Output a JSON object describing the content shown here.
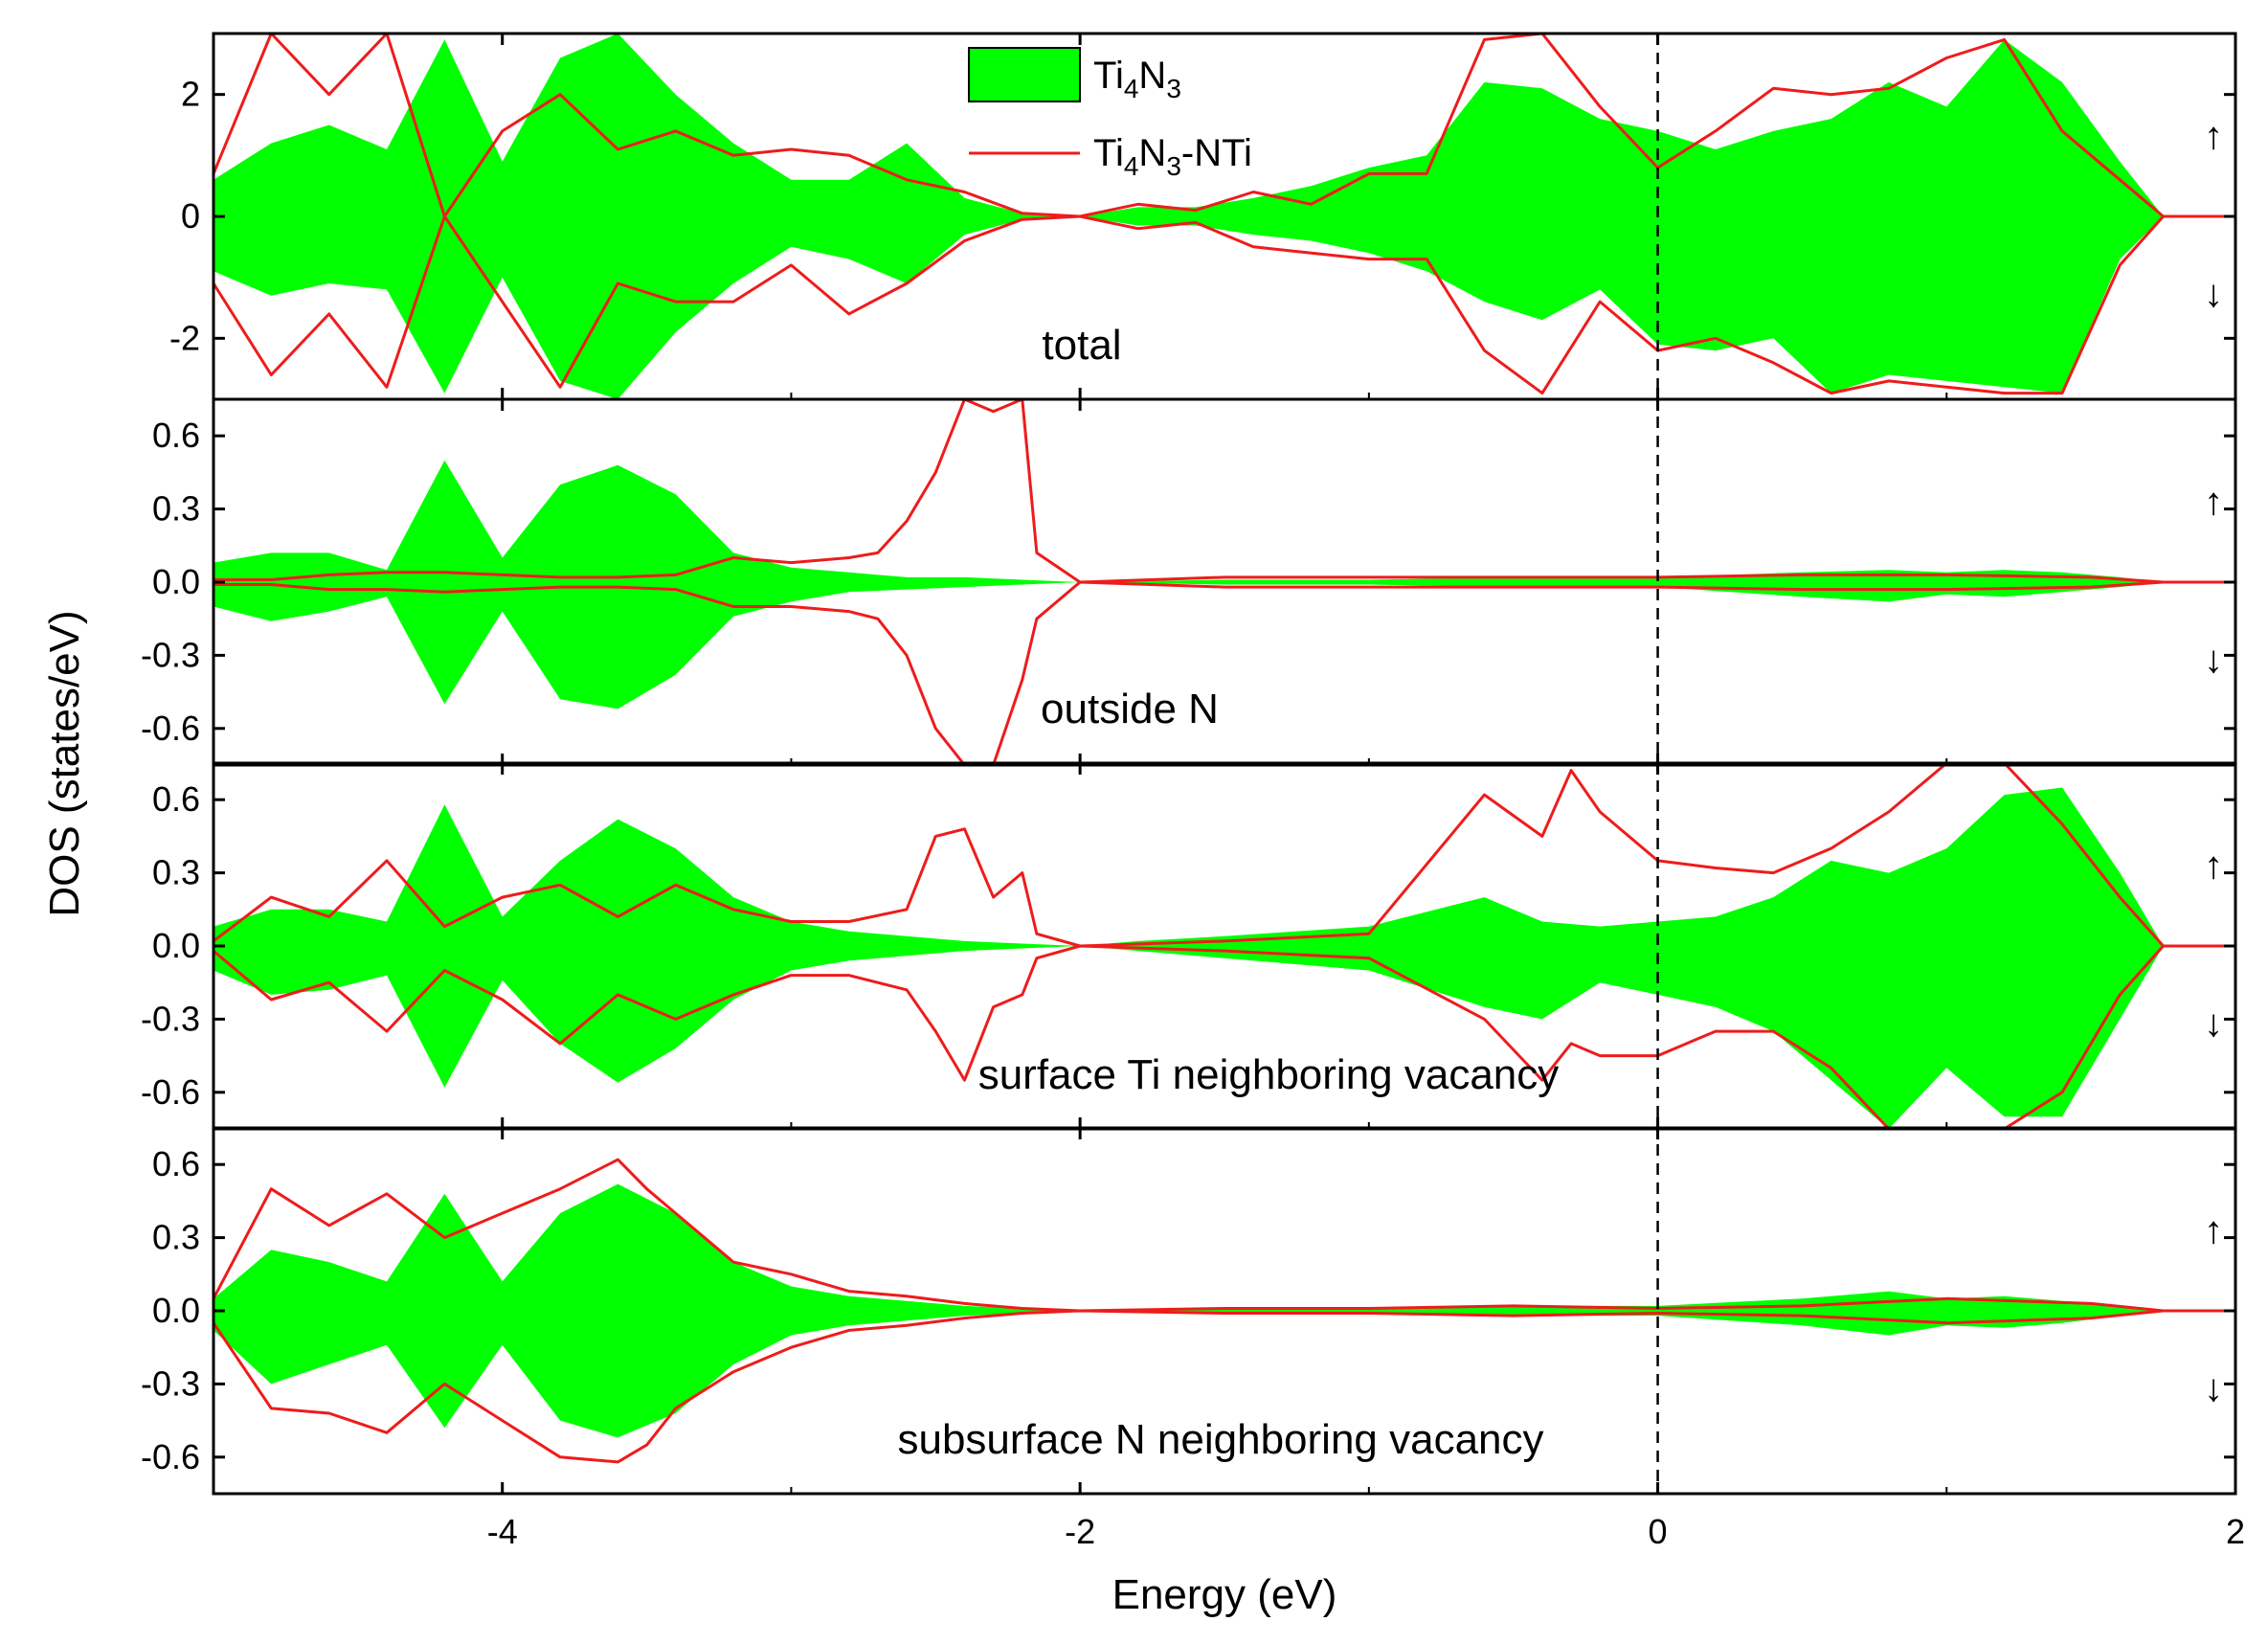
{
  "chart_data": {
    "type": "area",
    "x_range": [
      -5,
      2
    ],
    "x_ticks": [
      -4,
      -2,
      0,
      2
    ],
    "xlabel": "Energy (eV)",
    "ylabel": "DOS (states/eV)",
    "fermi_level": 0,
    "spin_labels": {
      "up": "↑",
      "down": "↓"
    },
    "legend": [
      {
        "label_main": "Ti",
        "sub1": "4",
        "mid": "N",
        "sub2": "3",
        "suffix": "",
        "style": "filled",
        "color": "#00ff00"
      },
      {
        "label_main": "Ti",
        "sub1": "4",
        "mid": "N",
        "sub2": "3",
        "suffix": "-NTi",
        "style": "line",
        "color": "#ee1c1c"
      }
    ],
    "panels": [
      {
        "label": "total",
        "ylim": [
          -3,
          3
        ],
        "yticks": [
          2,
          0,
          -2
        ],
        "ytick_labels": [
          "2",
          "0",
          "-2"
        ],
        "series": [
          {
            "name": "Ti4N3",
            "style": "filled",
            "x": [
              -5,
              -4.8,
              -4.6,
              -4.4,
              -4.2,
              -4.0,
              -3.8,
              -3.6,
              -3.4,
              -3.2,
              -3.0,
              -2.8,
              -2.6,
              -2.4,
              -2.2,
              -2.0,
              -1.8,
              -1.6,
              -1.4,
              -1.2,
              -1.0,
              -0.8,
              -0.6,
              -0.4,
              -0.2,
              0.0,
              0.2,
              0.4,
              0.6,
              0.8,
              1.0,
              1.2,
              1.4,
              1.6,
              1.75,
              2.0
            ],
            "up": [
              0.6,
              1.2,
              1.5,
              1.1,
              2.9,
              0.9,
              2.6,
              3.0,
              2.0,
              1.2,
              0.6,
              0.6,
              1.2,
              0.3,
              0.05,
              0.0,
              0.15,
              0.15,
              0.3,
              0.5,
              0.8,
              1.0,
              2.2,
              2.1,
              1.6,
              1.4,
              1.1,
              1.4,
              1.6,
              2.2,
              1.8,
              2.9,
              2.2,
              0.9,
              0.0,
              0.0
            ],
            "down": [
              -0.9,
              -1.3,
              -1.1,
              -1.2,
              -2.9,
              -1.0,
              -2.7,
              -3.0,
              -1.9,
              -1.1,
              -0.5,
              -0.7,
              -1.1,
              -0.3,
              -0.05,
              0.0,
              -0.15,
              -0.15,
              -0.3,
              -0.4,
              -0.6,
              -0.9,
              -1.4,
              -1.7,
              -1.2,
              -2.1,
              -2.2,
              -2.0,
              -2.9,
              -2.6,
              -2.7,
              -2.8,
              -2.9,
              -0.7,
              0.0,
              0.0
            ]
          },
          {
            "name": "Ti4N3-NTi",
            "style": "line",
            "x": [
              -5,
              -4.8,
              -4.6,
              -4.4,
              -4.2,
              -4.0,
              -3.8,
              -3.6,
              -3.4,
              -3.2,
              -3.0,
              -2.8,
              -2.6,
              -2.4,
              -2.2,
              -2.0,
              -1.8,
              -1.6,
              -1.4,
              -1.2,
              -1.0,
              -0.8,
              -0.6,
              -0.4,
              -0.2,
              0.0,
              0.2,
              0.4,
              0.6,
              0.8,
              1.0,
              1.2,
              1.4,
              1.6,
              1.75,
              2.0
            ],
            "up": [
              0.7,
              3.0,
              2.0,
              3.0,
              0.0,
              1.4,
              2.0,
              1.1,
              1.4,
              1.0,
              1.1,
              1.0,
              0.6,
              0.4,
              0.05,
              0.0,
              0.2,
              0.1,
              0.4,
              0.2,
              0.7,
              0.7,
              2.9,
              3.0,
              1.8,
              0.8,
              1.4,
              2.1,
              2.0,
              2.1,
              2.6,
              2.9,
              1.4,
              0.6,
              0.0,
              0.0
            ],
            "down": [
              -1.1,
              -2.6,
              -1.6,
              -2.8,
              0.0,
              -1.4,
              -2.8,
              -1.1,
              -1.4,
              -1.4,
              -0.8,
              -1.6,
              -1.1,
              -0.4,
              -0.05,
              0.0,
              -0.2,
              -0.1,
              -0.5,
              -0.6,
              -0.7,
              -0.7,
              -2.2,
              -2.9,
              -1.4,
              -2.2,
              -2.0,
              -2.4,
              -2.9,
              -2.7,
              -2.8,
              -2.9,
              -2.9,
              -0.8,
              0.0,
              0.0
            ]
          }
        ]
      },
      {
        "label": "outside N",
        "ylim": [
          -0.75,
          0.75
        ],
        "yticks": [
          0.6,
          0.3,
          0.0,
          -0.3,
          -0.6
        ],
        "ytick_labels": [
          "0.6",
          "0.3",
          "0.0",
          "-0.3",
          "-0.6"
        ],
        "series": [
          {
            "name": "Ti4N3",
            "style": "filled",
            "x": [
              -5,
              -4.8,
              -4.6,
              -4.4,
              -4.2,
              -4.0,
              -3.8,
              -3.6,
              -3.4,
              -3.2,
              -3.0,
              -2.8,
              -2.6,
              -2.4,
              -2.2,
              -2.0,
              -1.5,
              -1.0,
              -0.5,
              0.0,
              0.5,
              0.8,
              1.0,
              1.2,
              1.4,
              1.6,
              1.75,
              2.0
            ],
            "up": [
              0.08,
              0.12,
              0.12,
              0.05,
              0.5,
              0.1,
              0.4,
              0.48,
              0.36,
              0.12,
              0.06,
              0.04,
              0.02,
              0.02,
              0.01,
              0.0,
              0.01,
              0.01,
              0.02,
              0.02,
              0.04,
              0.05,
              0.04,
              0.05,
              0.04,
              0.02,
              0.0,
              0.0
            ],
            "down": [
              -0.1,
              -0.16,
              -0.12,
              -0.06,
              -0.5,
              -0.12,
              -0.48,
              -0.52,
              -0.38,
              -0.14,
              -0.08,
              -0.04,
              -0.03,
              -0.02,
              -0.01,
              0.0,
              -0.01,
              -0.01,
              -0.02,
              -0.02,
              -0.06,
              -0.08,
              -0.05,
              -0.06,
              -0.04,
              -0.02,
              0.0,
              0.0
            ]
          },
          {
            "name": "Ti4N3-NTi",
            "style": "line",
            "x": [
              -5,
              -4.8,
              -4.6,
              -4.4,
              -4.2,
              -4.0,
              -3.8,
              -3.6,
              -3.4,
              -3.2,
              -3.0,
              -2.8,
              -2.7,
              -2.6,
              -2.5,
              -2.4,
              -2.3,
              -2.2,
              -2.15,
              -2.0,
              -1.5,
              -1.0,
              -0.5,
              0.0,
              0.5,
              1.0,
              1.5,
              1.75,
              2.0
            ],
            "up": [
              0.01,
              0.01,
              0.03,
              0.04,
              0.04,
              0.03,
              0.02,
              0.02,
              0.03,
              0.1,
              0.08,
              0.1,
              0.12,
              0.25,
              0.45,
              0.75,
              0.7,
              0.75,
              0.12,
              0.0,
              0.02,
              0.02,
              0.02,
              0.02,
              0.03,
              0.03,
              0.02,
              0.0,
              0.0
            ],
            "down": [
              -0.01,
              -0.01,
              -0.03,
              -0.03,
              -0.04,
              -0.03,
              -0.02,
              -0.02,
              -0.03,
              -0.1,
              -0.1,
              -0.12,
              -0.15,
              -0.3,
              -0.6,
              -0.75,
              -0.75,
              -0.4,
              -0.15,
              0.0,
              -0.02,
              -0.02,
              -0.02,
              -0.02,
              -0.03,
              -0.03,
              -0.02,
              0.0,
              0.0
            ]
          }
        ]
      },
      {
        "label": "surface Ti neighboring vacancy",
        "ylim": [
          -0.75,
          0.75
        ],
        "yticks": [
          0.6,
          0.3,
          0.0,
          -0.3,
          -0.6
        ],
        "ytick_labels": [
          "0.6",
          "0.3",
          "0.0",
          "-0.3",
          "-0.6"
        ],
        "series": [
          {
            "name": "Ti4N3",
            "style": "filled",
            "x": [
              -5,
              -4.8,
              -4.6,
              -4.4,
              -4.2,
              -4.0,
              -3.8,
              -3.6,
              -3.4,
              -3.2,
              -3.0,
              -2.8,
              -2.6,
              -2.4,
              -2.2,
              -2.0,
              -1.8,
              -1.5,
              -1.0,
              -0.6,
              -0.4,
              -0.2,
              0.0,
              0.2,
              0.4,
              0.6,
              0.8,
              1.0,
              1.2,
              1.4,
              1.6,
              1.75,
              2.0
            ],
            "up": [
              0.08,
              0.15,
              0.15,
              0.1,
              0.58,
              0.12,
              0.35,
              0.52,
              0.4,
              0.2,
              0.1,
              0.06,
              0.04,
              0.02,
              0.01,
              0.0,
              0.02,
              0.04,
              0.08,
              0.2,
              0.1,
              0.08,
              0.1,
              0.12,
              0.2,
              0.35,
              0.3,
              0.4,
              0.62,
              0.65,
              0.3,
              0.0,
              0.0
            ],
            "down": [
              -0.1,
              -0.2,
              -0.18,
              -0.12,
              -0.58,
              -0.14,
              -0.4,
              -0.56,
              -0.42,
              -0.22,
              -0.1,
              -0.06,
              -0.04,
              -0.02,
              -0.01,
              0.0,
              -0.02,
              -0.05,
              -0.1,
              -0.25,
              -0.3,
              -0.15,
              -0.2,
              -0.25,
              -0.35,
              -0.55,
              -0.75,
              -0.5,
              -0.7,
              -0.7,
              -0.3,
              0.0,
              0.0
            ]
          },
          {
            "name": "Ti4N3-NTi",
            "style": "line",
            "x": [
              -5,
              -4.8,
              -4.6,
              -4.4,
              -4.2,
              -4.0,
              -3.8,
              -3.6,
              -3.4,
              -3.2,
              -3.0,
              -2.8,
              -2.6,
              -2.5,
              -2.4,
              -2.3,
              -2.2,
              -2.15,
              -2.0,
              -1.5,
              -1.0,
              -0.6,
              -0.4,
              -0.3,
              -0.2,
              0.0,
              0.2,
              0.4,
              0.6,
              0.8,
              1.0,
              1.2,
              1.4,
              1.6,
              1.75,
              2.0
            ],
            "up": [
              0.02,
              0.2,
              0.12,
              0.35,
              0.08,
              0.2,
              0.25,
              0.12,
              0.25,
              0.15,
              0.1,
              0.1,
              0.15,
              0.45,
              0.48,
              0.2,
              0.3,
              0.05,
              0.0,
              0.02,
              0.05,
              0.62,
              0.45,
              0.72,
              0.55,
              0.35,
              0.32,
              0.3,
              0.4,
              0.55,
              0.75,
              0.75,
              0.5,
              0.2,
              0.0,
              0.0
            ],
            "down": [
              -0.02,
              -0.22,
              -0.15,
              -0.35,
              -0.1,
              -0.22,
              -0.4,
              -0.2,
              -0.3,
              -0.2,
              -0.12,
              -0.12,
              -0.18,
              -0.35,
              -0.55,
              -0.25,
              -0.2,
              -0.05,
              0.0,
              -0.02,
              -0.05,
              -0.3,
              -0.55,
              -0.4,
              -0.45,
              -0.45,
              -0.35,
              -0.35,
              -0.5,
              -0.75,
              -0.75,
              -0.75,
              -0.6,
              -0.2,
              0.0,
              0.0
            ]
          }
        ]
      },
      {
        "label": "subsurface N neighboring vacancy",
        "ylim": [
          -0.75,
          0.75
        ],
        "yticks": [
          0.6,
          0.3,
          0.0,
          -0.3,
          -0.6
        ],
        "ytick_labels": [
          "0.6",
          "0.3",
          "0.0",
          "-0.3",
          "-0.6"
        ],
        "series": [
          {
            "name": "Ti4N3",
            "style": "filled",
            "x": [
              -5,
              -4.8,
              -4.6,
              -4.4,
              -4.2,
              -4.0,
              -3.8,
              -3.6,
              -3.4,
              -3.2,
              -3.0,
              -2.8,
              -2.6,
              -2.4,
              -2.2,
              -2.0,
              -1.5,
              -1.0,
              -0.5,
              0.0,
              0.5,
              0.8,
              1.0,
              1.2,
              1.4,
              1.6,
              1.75,
              2.0
            ],
            "up": [
              0.05,
              0.25,
              0.2,
              0.12,
              0.48,
              0.12,
              0.4,
              0.52,
              0.4,
              0.2,
              0.1,
              0.06,
              0.04,
              0.02,
              0.01,
              0.0,
              0.01,
              0.01,
              0.02,
              0.02,
              0.05,
              0.08,
              0.05,
              0.06,
              0.04,
              0.02,
              0.0,
              0.0
            ],
            "down": [
              -0.08,
              -0.3,
              -0.22,
              -0.14,
              -0.48,
              -0.14,
              -0.45,
              -0.52,
              -0.42,
              -0.22,
              -0.1,
              -0.06,
              -0.04,
              -0.02,
              -0.01,
              0.0,
              -0.01,
              -0.01,
              -0.02,
              -0.02,
              -0.06,
              -0.1,
              -0.06,
              -0.07,
              -0.05,
              -0.02,
              0.0,
              0.0
            ]
          },
          {
            "name": "Ti4N3-NTi",
            "style": "line",
            "x": [
              -5,
              -4.8,
              -4.6,
              -4.4,
              -4.2,
              -4.0,
              -3.8,
              -3.6,
              -3.5,
              -3.4,
              -3.2,
              -3.0,
              -2.8,
              -2.6,
              -2.4,
              -2.2,
              -2.0,
              -1.5,
              -1.0,
              -0.5,
              0.0,
              0.5,
              1.0,
              1.5,
              1.75,
              2.0
            ],
            "up": [
              0.05,
              0.5,
              0.35,
              0.48,
              0.3,
              0.4,
              0.5,
              0.62,
              0.5,
              0.4,
              0.2,
              0.15,
              0.08,
              0.06,
              0.03,
              0.01,
              0.0,
              0.01,
              0.01,
              0.02,
              0.01,
              0.02,
              0.05,
              0.03,
              0.0,
              0.0
            ],
            "down": [
              -0.05,
              -0.4,
              -0.42,
              -0.5,
              -0.3,
              -0.45,
              -0.6,
              -0.62,
              -0.55,
              -0.4,
              -0.25,
              -0.15,
              -0.08,
              -0.06,
              -0.03,
              -0.01,
              0.0,
              -0.01,
              -0.01,
              -0.02,
              -0.01,
              -0.02,
              -0.05,
              -0.03,
              0.0,
              0.0
            ]
          }
        ]
      }
    ]
  }
}
